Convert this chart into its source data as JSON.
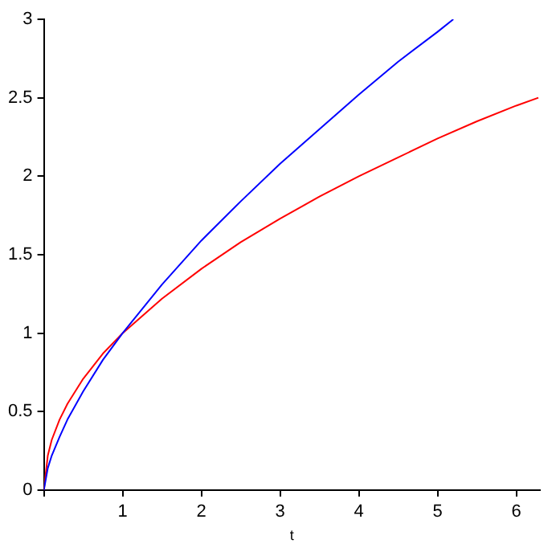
{
  "chart_data": {
    "type": "line",
    "xlabel": "t",
    "xlim": [
      0,
      6.3
    ],
    "ylim": [
      0,
      3
    ],
    "xticks": [
      {
        "value": 0,
        "label": null
      },
      1,
      2,
      3,
      4,
      5,
      6
    ],
    "yticks": [
      0,
      0.5,
      1,
      1.5,
      2,
      2.5,
      3
    ],
    "grid": false,
    "legend": false,
    "marker": "none",
    "line_style": "solid",
    "series": [
      {
        "color": "#0000ff",
        "x": [
          0,
          0.05,
          0.1,
          0.2,
          0.3,
          0.5,
          0.75,
          1,
          1.5,
          2,
          2.5,
          3,
          3.5,
          4,
          4.5,
          5,
          5.2
        ],
        "values": [
          0,
          0.14,
          0.22,
          0.34,
          0.45,
          0.63,
          0.83,
          1,
          1.31,
          1.59,
          1.84,
          2.08,
          2.3,
          2.52,
          2.73,
          2.92,
          3
        ]
      },
      {
        "color": "#ff0000",
        "x": [
          0,
          0.05,
          0.1,
          0.2,
          0.3,
          0.5,
          0.75,
          1,
          1.5,
          2,
          2.5,
          3,
          3.5,
          4,
          4.5,
          5,
          5.5,
          6,
          6.28
        ],
        "values": [
          0,
          0.22,
          0.32,
          0.45,
          0.55,
          0.71,
          0.87,
          1,
          1.22,
          1.41,
          1.58,
          1.73,
          1.87,
          2,
          2.12,
          2.24,
          2.35,
          2.45,
          2.5
        ]
      }
    ]
  }
}
